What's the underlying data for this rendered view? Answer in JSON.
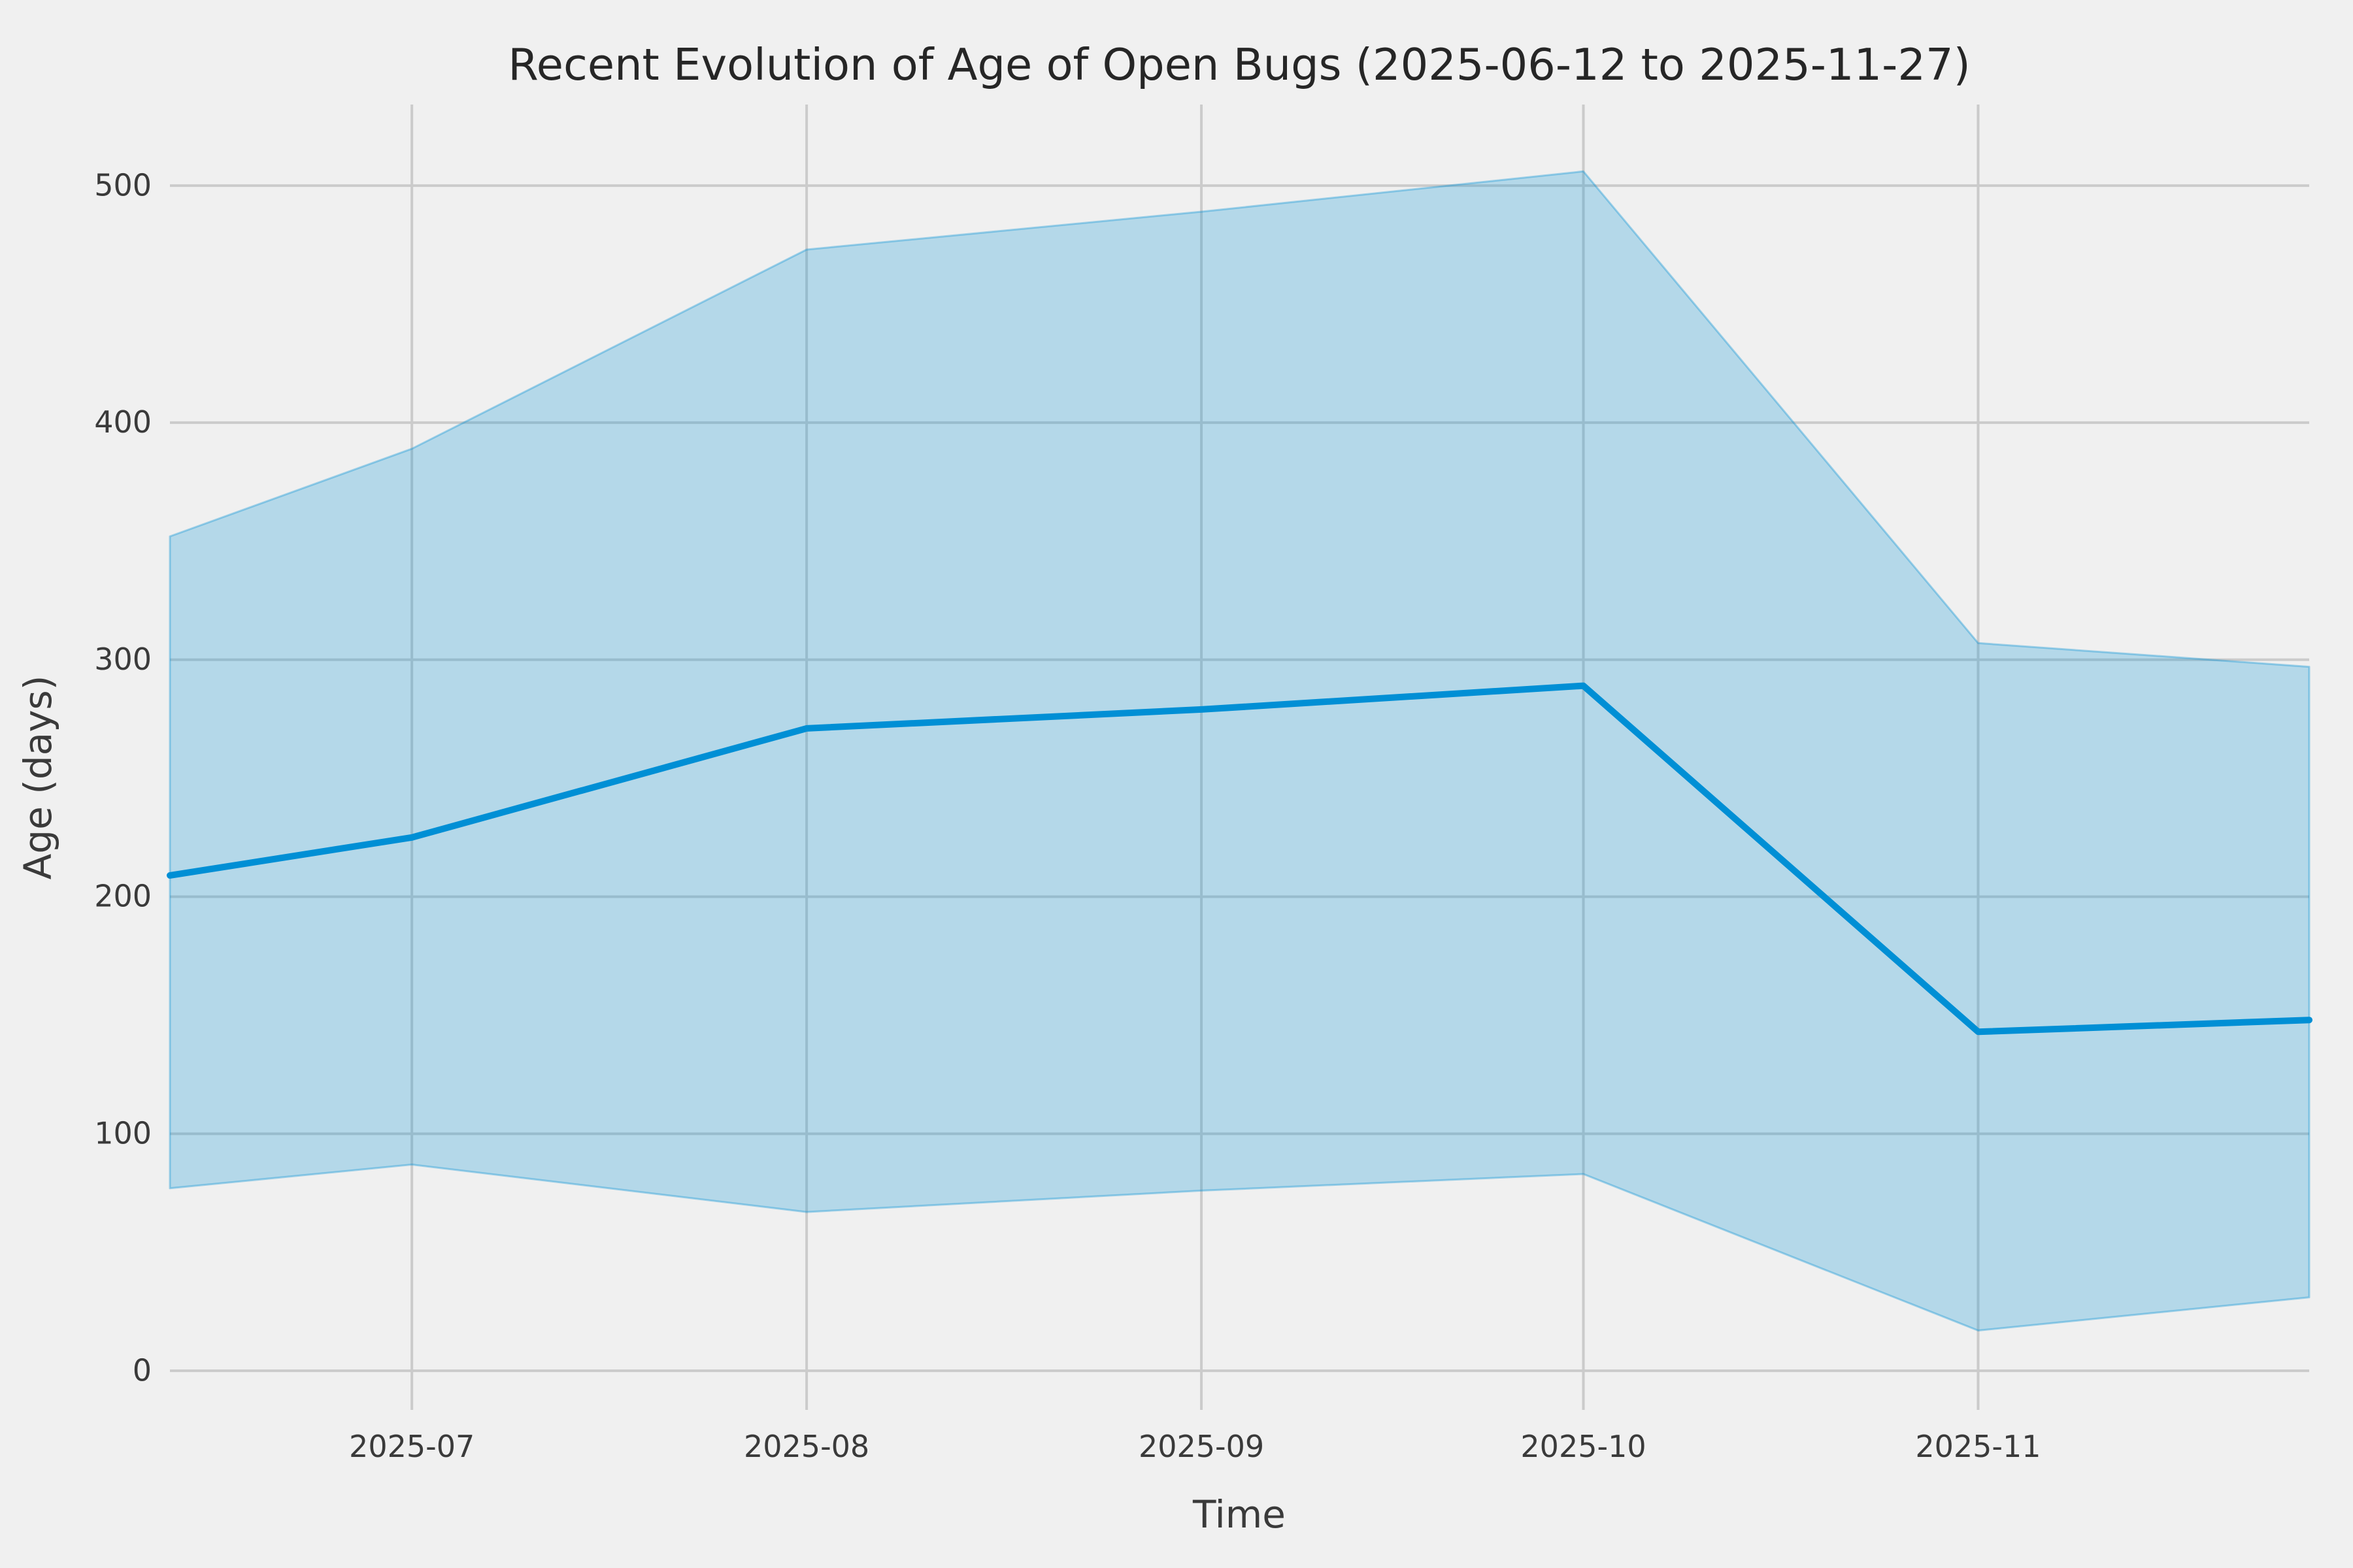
{
  "chart_data": {
    "type": "line",
    "title": "Recent Evolution of Age of Open Bugs (2025-06-12 to 2025-11-27)",
    "xlabel": "Time",
    "ylabel": "Age (days)",
    "x_range": [
      "2025-06-12",
      "2025-11-27"
    ],
    "ylim": [
      -16.5,
      534.2
    ],
    "grid": true,
    "legend_position": "none",
    "x": [
      "2025-06-12",
      "2025-07-01",
      "2025-08-01",
      "2025-09-01",
      "2025-10-01",
      "2025-11-01",
      "2025-11-27"
    ],
    "series": [
      {
        "name": "median_age_days",
        "role": "line",
        "values": [
          209,
          225,
          271,
          279,
          289,
          143,
          148
        ]
      },
      {
        "name": "band_lower_days",
        "role": "band-lower",
        "values": [
          77,
          87,
          67,
          76,
          83,
          17,
          31
        ]
      },
      {
        "name": "band_upper_days",
        "role": "band-upper",
        "values": [
          352,
          389,
          473,
          489,
          506,
          307,
          297
        ]
      }
    ],
    "x_ticks": [
      {
        "date": "2025-07-01",
        "label": "2025-07"
      },
      {
        "date": "2025-08-01",
        "label": "2025-08"
      },
      {
        "date": "2025-09-01",
        "label": "2025-09"
      },
      {
        "date": "2025-10-01",
        "label": "2025-10"
      },
      {
        "date": "2025-11-01",
        "label": "2025-11"
      }
    ],
    "y_ticks": [
      0,
      100,
      200,
      300,
      400,
      500
    ],
    "colors": {
      "line": "#008fd5",
      "band": "#008fd5",
      "grid": "#cbcbcb",
      "background": "#f0f0f0",
      "text": "#3a3a3a",
      "title_text": "#262626"
    }
  }
}
